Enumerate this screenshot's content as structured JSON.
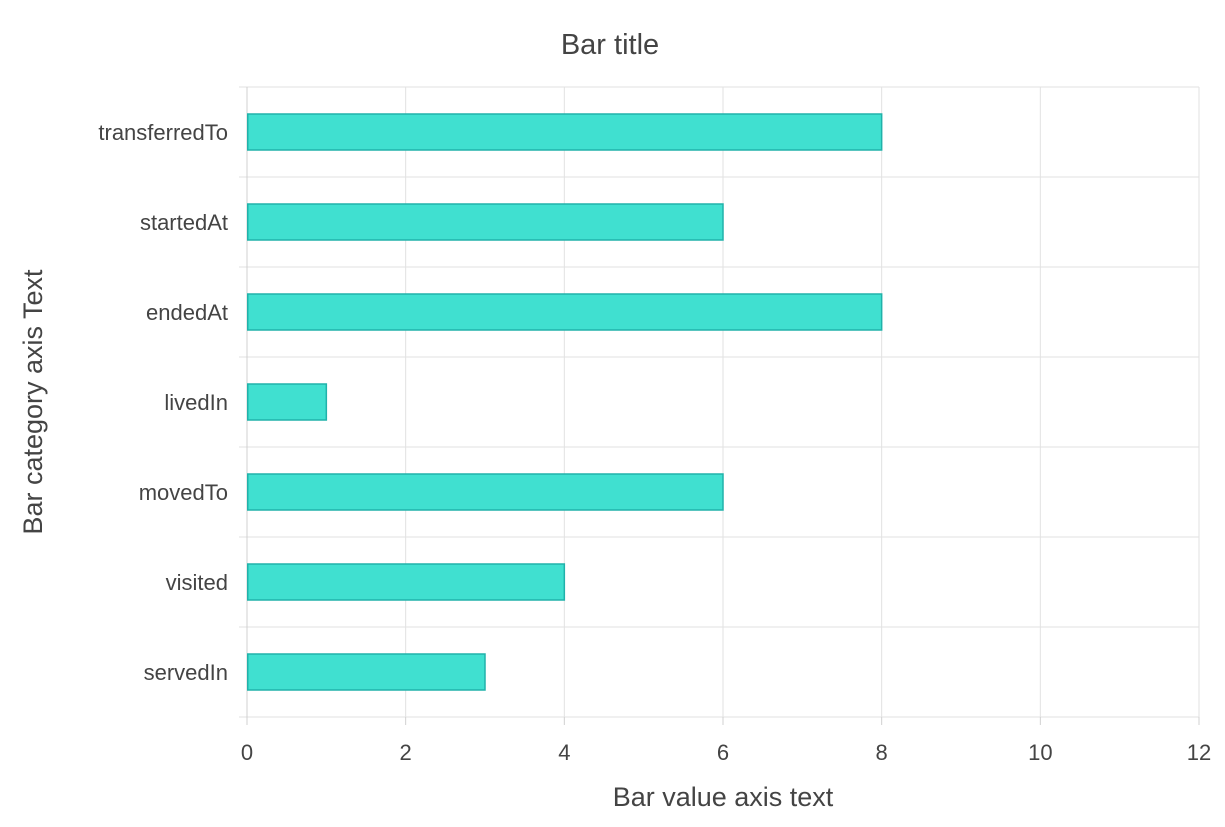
{
  "chart_data": {
    "type": "bar",
    "orientation": "horizontal",
    "title": "Bar title",
    "xlabel": "Bar value axis text",
    "ylabel": "Bar category axis Text",
    "categories": [
      "transferredTo",
      "startedAt",
      "endedAt",
      "livedIn",
      "movedTo",
      "visited",
      "servedIn"
    ],
    "values": [
      8,
      6,
      8,
      1,
      6,
      4,
      3
    ],
    "xlim": [
      0,
      12
    ],
    "xticks": [
      0,
      2,
      4,
      6,
      8,
      10,
      12
    ],
    "grid": true,
    "colors": {
      "bar_fill": "#40e0d0",
      "bar_stroke": "#20b2aa"
    }
  }
}
